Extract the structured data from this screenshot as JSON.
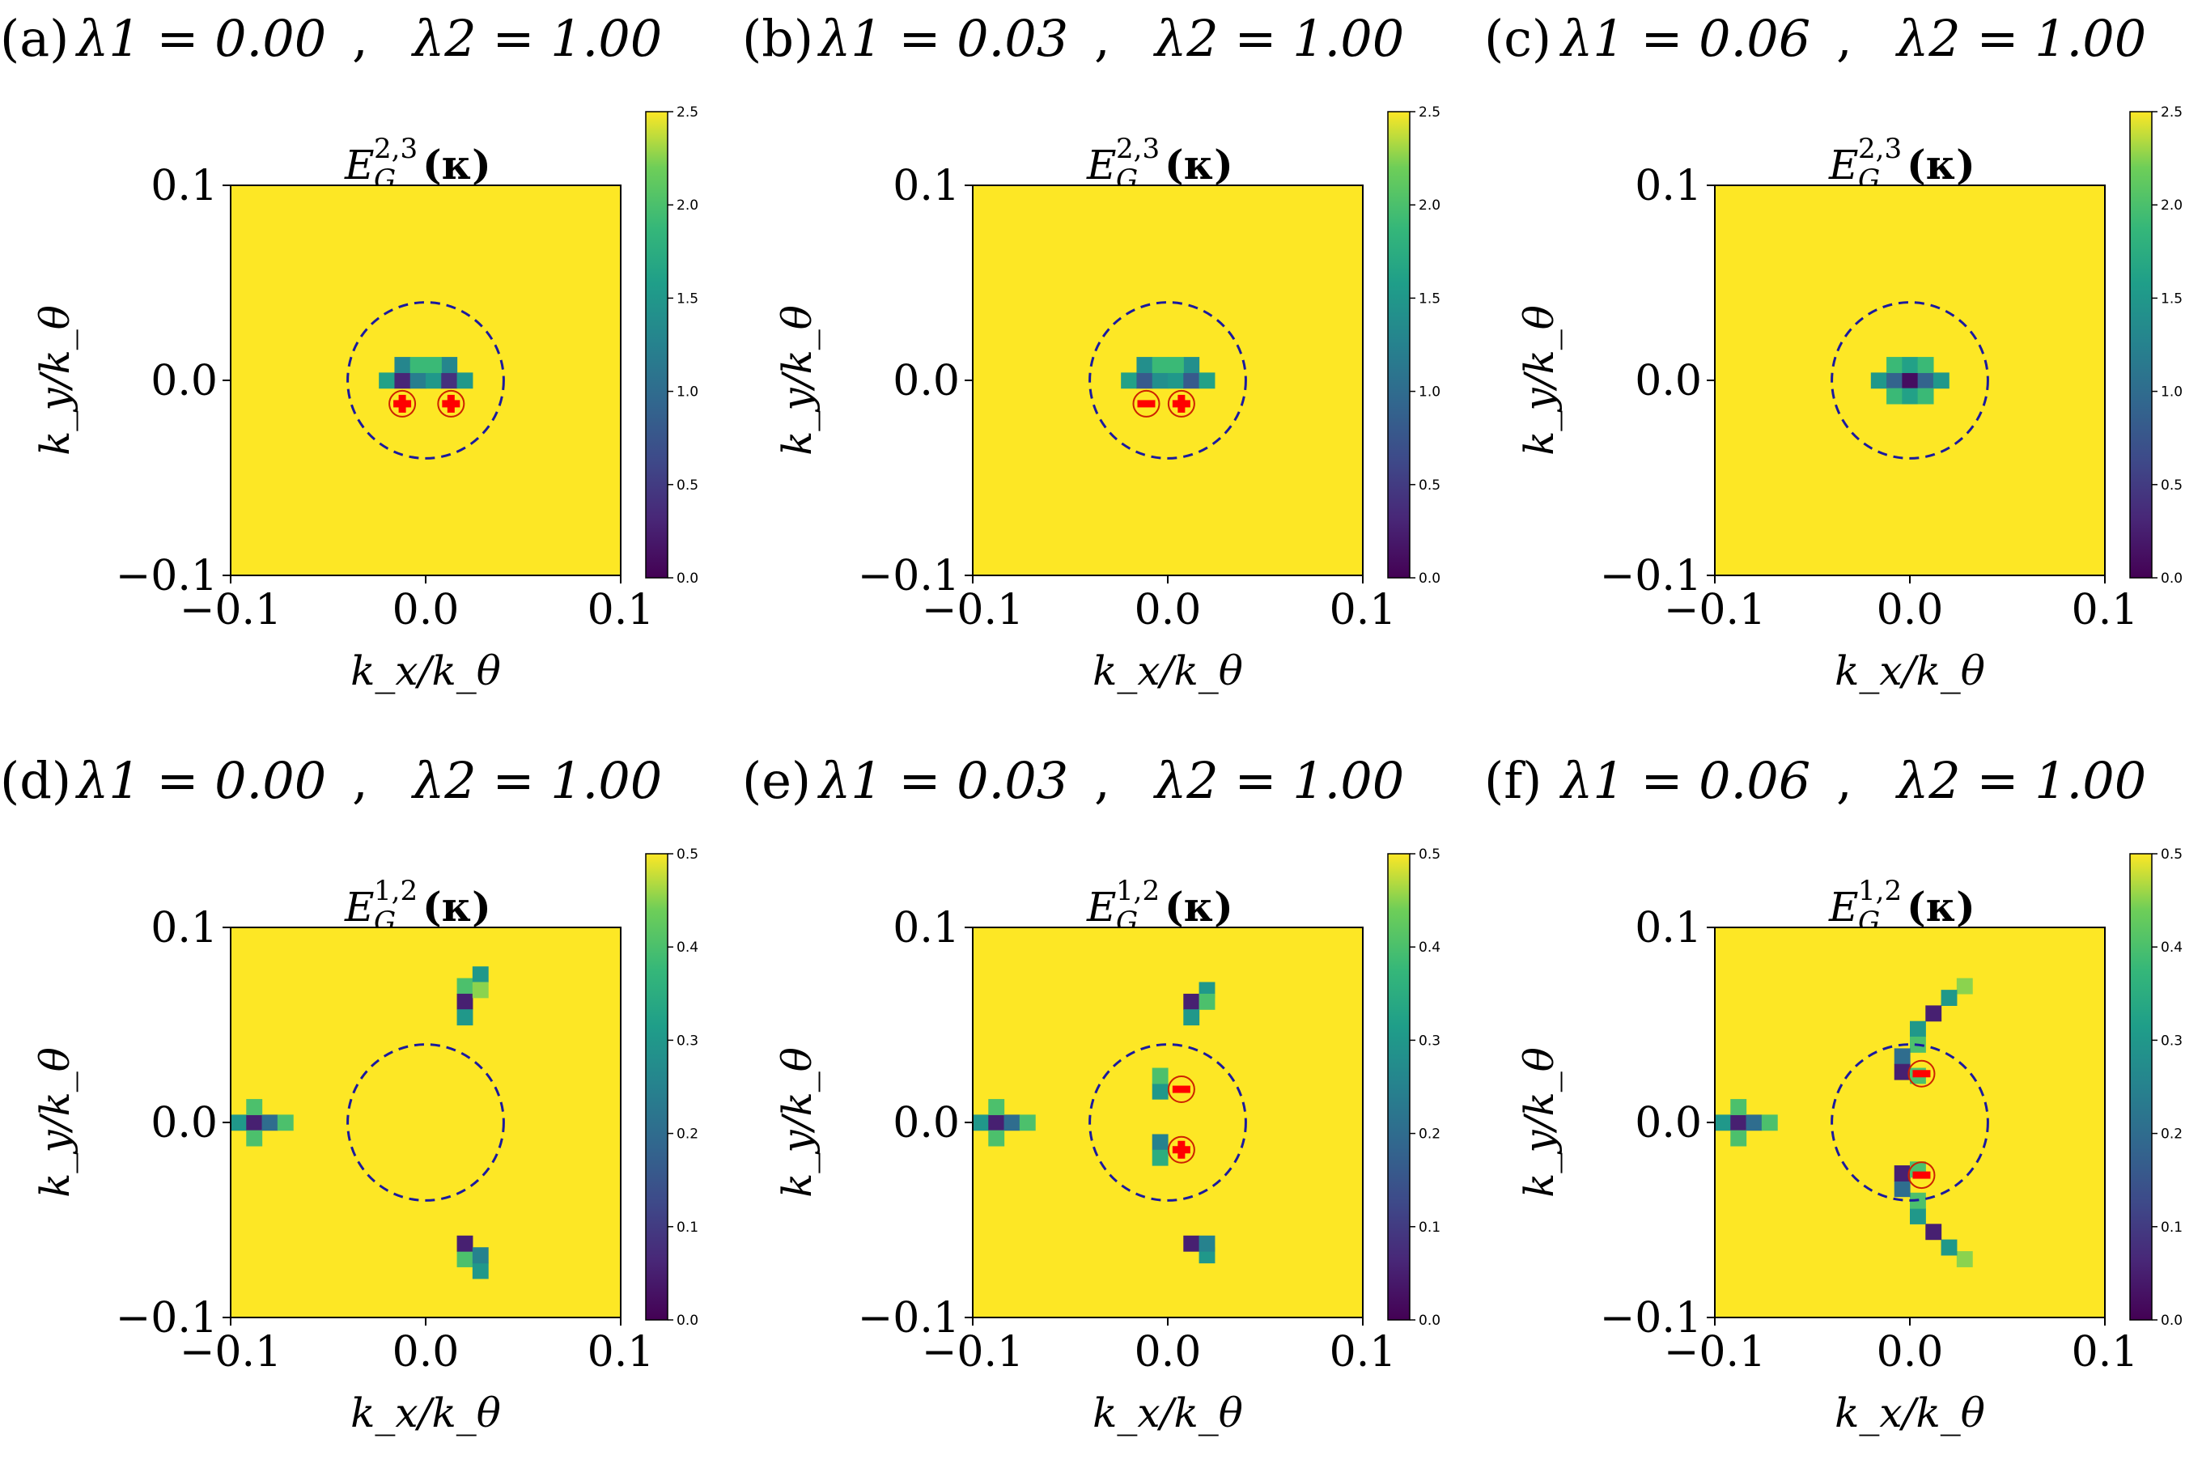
{
  "colors": {
    "background": "#ffffff",
    "heat_high": "#fde725",
    "heat_mid": "#21918c",
    "heat_low": "#440154",
    "dashed_circle": "#1a1a9e",
    "marker_fill": "#ff0000",
    "marker_edge": "#cc2200",
    "axis": "#000000"
  },
  "icons": {
    "plus_marker": "plus-in-circle-icon",
    "minus_marker": "minus-in-circle-icon"
  },
  "chart_data": [
    {
      "type": "heatmap",
      "panel_label": "(a)",
      "lambda1_label": "λ1 = 0.00",
      "lambda2_label": "λ2 = 1.00",
      "lambda1": 0.0,
      "lambda2": 1.0,
      "title": "E_G^{2,3}(κ)",
      "title_main": "E",
      "title_sub": "G",
      "title_sup": "2,3",
      "title_arg": "(κ)",
      "xlabel": "k_x/k_θ",
      "ylabel": "k_y/k_θ",
      "xlim": [
        -0.1,
        0.1
      ],
      "ylim": [
        -0.1,
        0.1
      ],
      "xticks": [
        "−0.1",
        "0.0",
        "0.1"
      ],
      "yticks": [
        "−0.1",
        "0.0",
        "0.1"
      ],
      "colorbar": {
        "min": 0.0,
        "max": 2.5,
        "ticks": [
          "0.0",
          "0.5",
          "1.0",
          "1.5",
          "2.0",
          "2.5"
        ]
      },
      "grid_step": 0.008,
      "gap_cells": [
        {
          "kx": -0.02,
          "ky": 0.0,
          "value": 1.6
        },
        {
          "kx": -0.012,
          "ky": 0.0,
          "value": 0.3
        },
        {
          "kx": -0.004,
          "ky": 0.0,
          "value": 1.2
        },
        {
          "kx": 0.004,
          "ky": 0.0,
          "value": 1.5
        },
        {
          "kx": 0.012,
          "ky": 0.0,
          "value": 0.4
        },
        {
          "kx": 0.02,
          "ky": 0.0,
          "value": 1.5
        },
        {
          "kx": -0.012,
          "ky": 0.008,
          "value": 1.3
        },
        {
          "kx": 0.012,
          "ky": 0.008,
          "value": 1.3
        },
        {
          "kx": -0.004,
          "ky": 0.008,
          "value": 1.9
        },
        {
          "kx": 0.004,
          "ky": 0.008,
          "value": 1.9
        }
      ],
      "dashed_circle": {
        "cx": 0.0,
        "cy": 0.0,
        "r": 0.04
      },
      "markers": [
        {
          "kx": -0.012,
          "ky": -0.012,
          "sign": "+"
        },
        {
          "kx": 0.013,
          "ky": -0.012,
          "sign": "+"
        }
      ]
    },
    {
      "type": "heatmap",
      "panel_label": "(b)",
      "lambda1_label": "λ1 = 0.03",
      "lambda2_label": "λ2 = 1.00",
      "lambda1": 0.03,
      "lambda2": 1.0,
      "title": "E_G^{2,3}(κ)",
      "title_main": "E",
      "title_sub": "G",
      "title_sup": "2,3",
      "title_arg": "(κ)",
      "xlabel": "k_x/k_θ",
      "ylabel": "k_y/k_θ",
      "xlim": [
        -0.1,
        0.1
      ],
      "ylim": [
        -0.1,
        0.1
      ],
      "xticks": [
        "−0.1",
        "0.0",
        "0.1"
      ],
      "yticks": [
        "−0.1",
        "0.0",
        "0.1"
      ],
      "colorbar": {
        "min": 0.0,
        "max": 2.5,
        "ticks": [
          "0.0",
          "0.5",
          "1.0",
          "1.5",
          "2.0",
          "2.5"
        ]
      },
      "grid_step": 0.008,
      "gap_cells": [
        {
          "kx": -0.02,
          "ky": 0.0,
          "value": 1.6
        },
        {
          "kx": -0.012,
          "ky": 0.0,
          "value": 0.8
        },
        {
          "kx": -0.004,
          "ky": 0.0,
          "value": 1.4
        },
        {
          "kx": 0.004,
          "ky": 0.0,
          "value": 1.5
        },
        {
          "kx": 0.012,
          "ky": 0.0,
          "value": 0.8
        },
        {
          "kx": 0.02,
          "ky": 0.0,
          "value": 1.6
        },
        {
          "kx": -0.012,
          "ky": 0.008,
          "value": 1.4
        },
        {
          "kx": 0.012,
          "ky": 0.008,
          "value": 1.4
        },
        {
          "kx": -0.004,
          "ky": 0.008,
          "value": 1.9
        },
        {
          "kx": 0.004,
          "ky": 0.008,
          "value": 1.9
        }
      ],
      "dashed_circle": {
        "cx": 0.0,
        "cy": 0.0,
        "r": 0.04
      },
      "markers": [
        {
          "kx": -0.011,
          "ky": -0.012,
          "sign": "-"
        },
        {
          "kx": 0.007,
          "ky": -0.012,
          "sign": "+"
        }
      ]
    },
    {
      "type": "heatmap",
      "panel_label": "(c)",
      "lambda1_label": "λ1 = 0.06",
      "lambda2_label": "λ2 = 1.00",
      "lambda1": 0.06,
      "lambda2": 1.0,
      "title": "E_G^{2,3}(κ)",
      "title_main": "E",
      "title_sub": "G",
      "title_sup": "2,3",
      "title_arg": "(κ)",
      "xlabel": "k_x/k_θ",
      "ylabel": "k_y/k_θ",
      "xlim": [
        -0.1,
        0.1
      ],
      "ylim": [
        -0.1,
        0.1
      ],
      "xticks": [
        "−0.1",
        "0.0",
        "0.1"
      ],
      "yticks": [
        "−0.1",
        "0.0",
        "0.1"
      ],
      "colorbar": {
        "min": 0.0,
        "max": 2.5,
        "ticks": [
          "0.0",
          "0.5",
          "1.0",
          "1.5",
          "2.0",
          "2.5"
        ]
      },
      "grid_step": 0.008,
      "gap_cells": [
        {
          "kx": -0.016,
          "ky": 0.0,
          "value": 1.5
        },
        {
          "kx": -0.008,
          "ky": 0.0,
          "value": 0.9
        },
        {
          "kx": 0.0,
          "ky": 0.0,
          "value": 0.1
        },
        {
          "kx": 0.008,
          "ky": 0.0,
          "value": 0.9
        },
        {
          "kx": 0.016,
          "ky": 0.0,
          "value": 1.5
        },
        {
          "kx": -0.008,
          "ky": 0.008,
          "value": 1.9
        },
        {
          "kx": 0.0,
          "ky": 0.008,
          "value": 1.6
        },
        {
          "kx": 0.008,
          "ky": 0.008,
          "value": 1.9
        },
        {
          "kx": -0.008,
          "ky": -0.008,
          "value": 1.9
        },
        {
          "kx": 0.0,
          "ky": -0.008,
          "value": 1.6
        },
        {
          "kx": 0.008,
          "ky": -0.008,
          "value": 1.9
        }
      ],
      "dashed_circle": {
        "cx": 0.0,
        "cy": 0.0,
        "r": 0.04
      },
      "markers": []
    },
    {
      "type": "heatmap",
      "panel_label": "(d)",
      "lambda1_label": "λ1 = 0.00",
      "lambda2_label": "λ2 = 1.00",
      "lambda1": 0.0,
      "lambda2": 1.0,
      "title": "E_G^{1,2}(κ)",
      "title_main": "E",
      "title_sub": "G",
      "title_sup": "1,2",
      "title_arg": "(κ)",
      "xlabel": "k_x/k_θ",
      "ylabel": "k_y/k_θ",
      "xlim": [
        -0.1,
        0.1
      ],
      "ylim": [
        -0.1,
        0.1
      ],
      "xticks": [
        "−0.1",
        "0.0",
        "0.1"
      ],
      "yticks": [
        "−0.1",
        "0.0",
        "0.1"
      ],
      "colorbar": {
        "min": 0.0,
        "max": 0.5,
        "ticks": [
          "0.0",
          "0.1",
          "0.2",
          "0.3",
          "0.4",
          "0.5"
        ]
      },
      "grid_step": 0.008,
      "gap_cells": [
        {
          "kx": -0.096,
          "ky": 0.0,
          "value": 0.3
        },
        {
          "kx": -0.088,
          "ky": 0.0,
          "value": 0.05
        },
        {
          "kx": -0.08,
          "ky": 0.0,
          "value": 0.2
        },
        {
          "kx": -0.072,
          "ky": 0.0,
          "value": 0.4
        },
        {
          "kx": -0.088,
          "ky": 0.008,
          "value": 0.4
        },
        {
          "kx": -0.088,
          "ky": -0.008,
          "value": 0.4
        },
        {
          "kx": 0.02,
          "ky": 0.07,
          "value": 0.4
        },
        {
          "kx": 0.028,
          "ky": 0.076,
          "value": 0.3
        },
        {
          "kx": 0.02,
          "ky": 0.062,
          "value": 0.05
        },
        {
          "kx": 0.02,
          "ky": 0.054,
          "value": 0.3
        },
        {
          "kx": 0.028,
          "ky": 0.068,
          "value": 0.45
        },
        {
          "kx": 0.02,
          "ky": -0.07,
          "value": 0.4
        },
        {
          "kx": 0.028,
          "ky": -0.076,
          "value": 0.3
        },
        {
          "kx": 0.02,
          "ky": -0.062,
          "value": 0.05
        },
        {
          "kx": 0.028,
          "ky": -0.068,
          "value": 0.25
        }
      ],
      "dashed_circle": {
        "cx": 0.0,
        "cy": 0.0,
        "r": 0.04
      },
      "markers": []
    },
    {
      "type": "heatmap",
      "panel_label": "(e)",
      "lambda1_label": "λ1 = 0.03",
      "lambda2_label": "λ2 = 1.00",
      "lambda1": 0.03,
      "lambda2": 1.0,
      "title": "E_G^{1,2}(κ)",
      "title_main": "E",
      "title_sub": "G",
      "title_sup": "1,2",
      "title_arg": "(κ)",
      "xlabel": "k_x/k_θ",
      "ylabel": "k_y/k_θ",
      "xlim": [
        -0.1,
        0.1
      ],
      "ylim": [
        -0.1,
        0.1
      ],
      "xticks": [
        "−0.1",
        "0.0",
        "0.1"
      ],
      "yticks": [
        "−0.1",
        "0.0",
        "0.1"
      ],
      "colorbar": {
        "min": 0.0,
        "max": 0.5,
        "ticks": [
          "0.0",
          "0.1",
          "0.2",
          "0.3",
          "0.4",
          "0.5"
        ]
      },
      "grid_step": 0.008,
      "gap_cells": [
        {
          "kx": -0.096,
          "ky": 0.0,
          "value": 0.3
        },
        {
          "kx": -0.088,
          "ky": 0.0,
          "value": 0.05
        },
        {
          "kx": -0.08,
          "ky": 0.0,
          "value": 0.2
        },
        {
          "kx": -0.072,
          "ky": 0.0,
          "value": 0.4
        },
        {
          "kx": -0.088,
          "ky": 0.008,
          "value": 0.4
        },
        {
          "kx": -0.088,
          "ky": -0.008,
          "value": 0.4
        },
        {
          "kx": 0.02,
          "ky": 0.068,
          "value": 0.3
        },
        {
          "kx": 0.012,
          "ky": 0.062,
          "value": 0.05
        },
        {
          "kx": 0.012,
          "ky": 0.054,
          "value": 0.3
        },
        {
          "kx": 0.02,
          "ky": 0.062,
          "value": 0.4
        },
        {
          "kx": 0.02,
          "ky": -0.068,
          "value": 0.3
        },
        {
          "kx": 0.012,
          "ky": -0.062,
          "value": 0.05
        },
        {
          "kx": 0.02,
          "ky": -0.062,
          "value": 0.25
        },
        {
          "kx": -0.004,
          "ky": 0.016,
          "value": 0.3
        },
        {
          "kx": -0.004,
          "ky": 0.024,
          "value": 0.4
        },
        {
          "kx": -0.004,
          "ky": -0.01,
          "value": 0.25
        },
        {
          "kx": -0.004,
          "ky": -0.018,
          "value": 0.35
        }
      ],
      "dashed_circle": {
        "cx": 0.0,
        "cy": 0.0,
        "r": 0.04
      },
      "markers": [
        {
          "kx": 0.007,
          "ky": 0.017,
          "sign": "-"
        },
        {
          "kx": 0.007,
          "ky": -0.014,
          "sign": "+"
        }
      ]
    },
    {
      "type": "heatmap",
      "panel_label": "(f)",
      "lambda1_label": "λ1 = 0.06",
      "lambda2_label": "λ2 = 1.00",
      "lambda1": 0.06,
      "lambda2": 1.0,
      "title": "E_G^{1,2}(κ)",
      "title_main": "E",
      "title_sub": "G",
      "title_sup": "1,2",
      "title_arg": "(κ)",
      "xlabel": "k_x/k_θ",
      "ylabel": "k_y/k_θ",
      "xlim": [
        -0.1,
        0.1
      ],
      "ylim": [
        -0.1,
        0.1
      ],
      "xticks": [
        "−0.1",
        "0.0",
        "0.1"
      ],
      "yticks": [
        "−0.1",
        "0.0",
        "0.1"
      ],
      "colorbar": {
        "min": 0.0,
        "max": 0.5,
        "ticks": [
          "0.0",
          "0.1",
          "0.2",
          "0.3",
          "0.4",
          "0.5"
        ]
      },
      "grid_step": 0.008,
      "gap_cells": [
        {
          "kx": -0.096,
          "ky": 0.0,
          "value": 0.3
        },
        {
          "kx": -0.088,
          "ky": 0.0,
          "value": 0.05
        },
        {
          "kx": -0.08,
          "ky": 0.0,
          "value": 0.2
        },
        {
          "kx": -0.072,
          "ky": 0.0,
          "value": 0.4
        },
        {
          "kx": -0.088,
          "ky": 0.008,
          "value": 0.4
        },
        {
          "kx": -0.088,
          "ky": -0.008,
          "value": 0.4
        },
        {
          "kx": 0.028,
          "ky": 0.07,
          "value": 0.45
        },
        {
          "kx": 0.02,
          "ky": 0.064,
          "value": 0.3
        },
        {
          "kx": 0.012,
          "ky": 0.056,
          "value": 0.05
        },
        {
          "kx": 0.004,
          "ky": 0.048,
          "value": 0.3
        },
        {
          "kx": 0.004,
          "ky": 0.04,
          "value": 0.4
        },
        {
          "kx": -0.004,
          "ky": 0.034,
          "value": 0.2
        },
        {
          "kx": -0.004,
          "ky": 0.026,
          "value": 0.05
        },
        {
          "kx": 0.004,
          "ky": 0.024,
          "value": 0.4
        },
        {
          "kx": 0.028,
          "ky": -0.07,
          "value": 0.45
        },
        {
          "kx": 0.02,
          "ky": -0.064,
          "value": 0.3
        },
        {
          "kx": 0.012,
          "ky": -0.056,
          "value": 0.05
        },
        {
          "kx": 0.004,
          "ky": -0.048,
          "value": 0.3
        },
        {
          "kx": 0.004,
          "ky": -0.04,
          "value": 0.4
        },
        {
          "kx": -0.004,
          "ky": -0.034,
          "value": 0.2
        },
        {
          "kx": -0.004,
          "ky": -0.026,
          "value": 0.05
        },
        {
          "kx": 0.004,
          "ky": -0.024,
          "value": 0.4
        }
      ],
      "dashed_circle": {
        "cx": 0.0,
        "cy": 0.0,
        "r": 0.04
      },
      "markers": [
        {
          "kx": 0.006,
          "ky": 0.025,
          "sign": "-"
        },
        {
          "kx": 0.006,
          "ky": -0.027,
          "sign": "-"
        }
      ]
    }
  ]
}
